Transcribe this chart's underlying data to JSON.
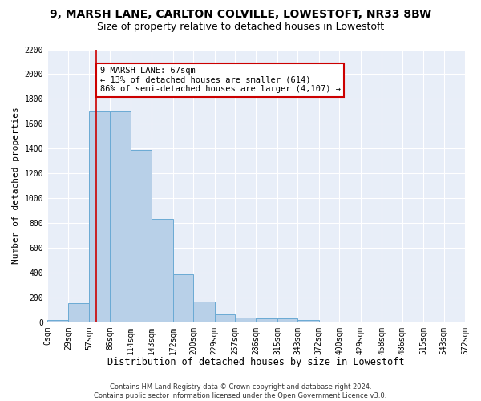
{
  "title1": "9, MARSH LANE, CARLTON COLVILLE, LOWESTOFT, NR33 8BW",
  "title2": "Size of property relative to detached houses in Lowestoft",
  "xlabel": "Distribution of detached houses by size in Lowestoft",
  "ylabel": "Number of detached properties",
  "bar_values": [
    15,
    155,
    1700,
    1700,
    1390,
    835,
    385,
    165,
    65,
    38,
    30,
    30,
    20,
    0,
    0,
    0,
    0,
    0,
    0,
    0
  ],
  "bin_edges": [
    0,
    29,
    57,
    86,
    114,
    143,
    172,
    200,
    229,
    257,
    286,
    315,
    343,
    372,
    400,
    429,
    458,
    486,
    515,
    543,
    572
  ],
  "tick_labels": [
    "0sqm",
    "29sqm",
    "57sqm",
    "86sqm",
    "114sqm",
    "143sqm",
    "172sqm",
    "200sqm",
    "229sqm",
    "257sqm",
    "286sqm",
    "315sqm",
    "343sqm",
    "372sqm",
    "400sqm",
    "429sqm",
    "458sqm",
    "486sqm",
    "515sqm",
    "543sqm",
    "572sqm"
  ],
  "property_size": 67,
  "bar_color": "#b8d0e8",
  "bar_edge_color": "#6aaad4",
  "vline_color": "#cc0000",
  "annotation_text": "9 MARSH LANE: 67sqm\n← 13% of detached houses are smaller (614)\n86% of semi-detached houses are larger (4,107) →",
  "annotation_box_color": "#ffffff",
  "annotation_box_edge": "#cc0000",
  "plot_bg_color": "#e8eef8",
  "fig_bg_color": "#ffffff",
  "grid_color": "#ffffff",
  "ylim": [
    0,
    2200
  ],
  "yticks": [
    0,
    200,
    400,
    600,
    800,
    1000,
    1200,
    1400,
    1600,
    1800,
    2000,
    2200
  ],
  "footer_text": "Contains HM Land Registry data © Crown copyright and database right 2024.\nContains public sector information licensed under the Open Government Licence v3.0.",
  "title1_fontsize": 10,
  "title2_fontsize": 9,
  "xlabel_fontsize": 8.5,
  "ylabel_fontsize": 8,
  "tick_fontsize": 7,
  "annotation_fontsize": 7.5,
  "footer_fontsize": 6
}
